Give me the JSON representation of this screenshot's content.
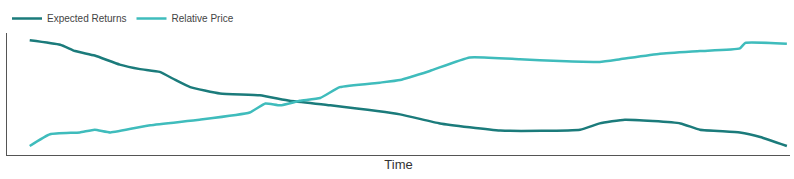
{
  "chart_data": {
    "type": "line",
    "x_label": "Time",
    "xlim": [
      0,
      100
    ],
    "ylim": [
      0,
      100
    ],
    "tick_labels": false,
    "grid": false,
    "legend": "top-left",
    "series": [
      {
        "name": "Expected Returns",
        "color": "#1b7b7b",
        "x": [
          2.9,
          6.8,
          8.7,
          11.2,
          14.4,
          17.0,
          19.5,
          21.5,
          23.4,
          27.2,
          32.3,
          36.1,
          41.3,
          50.2,
          55.3,
          63.0,
          73.2,
          75.7,
          78.9,
          86.0,
          88.5,
          93.6,
          96.2,
          99.6
        ],
        "values": [
          94.1,
          90.4,
          85.2,
          81.5,
          74.1,
          70.4,
          68.1,
          61.5,
          55.6,
          50.4,
          48.9,
          44.4,
          40.7,
          33.3,
          25.9,
          20.0,
          20.7,
          25.9,
          28.9,
          25.9,
          20.7,
          18.5,
          14.8,
          7.4
        ]
      },
      {
        "name": "Relative Price",
        "color": "#3fbcbc",
        "x": [
          2.9,
          5.5,
          9.3,
          11.2,
          13.2,
          18.3,
          24.6,
          31.0,
          33.0,
          34.9,
          37.4,
          40.0,
          42.5,
          47.6,
          50.2,
          54.0,
          59.1,
          65.5,
          70.6,
          75.7,
          78.3,
          83.4,
          88.5,
          93.6,
          94.3,
          99.6
        ],
        "values": [
          7.4,
          17.0,
          18.5,
          20.7,
          18.5,
          24.4,
          28.9,
          34.8,
          42.2,
          40.7,
          44.4,
          46.7,
          55.6,
          59.3,
          61.5,
          68.9,
          80.0,
          78.5,
          77.0,
          76.3,
          78.5,
          83.0,
          85.2,
          87.4,
          91.9,
          91.1
        ]
      }
    ]
  }
}
